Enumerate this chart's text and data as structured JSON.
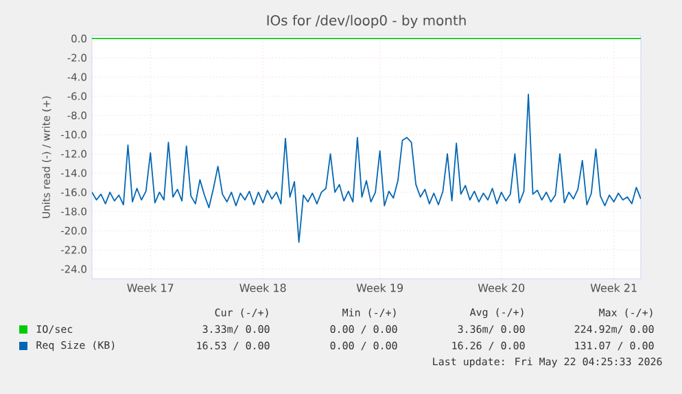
{
  "chart_data": {
    "type": "line",
    "title": "IOs for /dev/loop0 - by month",
    "ylabel": "Units read (-) / write (+)",
    "ylim": [
      -25,
      0.3
    ],
    "categories": [
      null,
      null,
      null,
      null,
      null,
      null,
      null,
      null,
      null,
      null,
      null,
      null,
      null,
      "Week 17",
      null,
      null,
      null,
      null,
      null,
      null,
      null,
      null,
      null,
      null,
      null,
      null,
      null,
      null,
      null,
      null,
      null,
      null,
      null,
      null,
      null,
      null,
      null,
      null,
      "Week 18",
      null,
      null,
      null,
      null,
      null,
      null,
      null,
      null,
      null,
      null,
      null,
      null,
      null,
      null,
      null,
      null,
      null,
      null,
      null,
      null,
      null,
      null,
      null,
      null,
      null,
      "Week 19",
      null,
      null,
      null,
      null,
      null,
      null,
      null,
      null,
      null,
      null,
      null,
      null,
      null,
      null,
      null,
      null,
      null,
      null,
      null,
      null,
      null,
      null,
      null,
      null,
      null,
      null,
      "Week 20",
      null,
      null,
      null,
      null,
      null,
      null,
      null,
      null,
      null,
      null,
      null,
      null,
      null,
      null,
      null,
      null,
      null,
      null,
      null,
      null,
      null,
      null,
      null,
      null,
      "Week 21",
      null,
      null,
      null,
      null,
      null,
      null
    ],
    "yticks": [
      {
        "value": 0,
        "label": "0.0"
      },
      {
        "value": -2,
        "label": "-2.0"
      },
      {
        "value": -4,
        "label": "-4.0"
      },
      {
        "value": -6,
        "label": "-6.0"
      },
      {
        "value": -8,
        "label": "-8.0"
      },
      {
        "value": -10,
        "label": "-10.0"
      },
      {
        "value": -12,
        "label": "-12.0"
      },
      {
        "value": -14,
        "label": "-14.0"
      },
      {
        "value": -16,
        "label": "-16.0"
      },
      {
        "value": -18,
        "label": "-18.0"
      },
      {
        "value": -20,
        "label": "-20.0"
      },
      {
        "value": -22,
        "label": "-22.0"
      },
      {
        "value": -24,
        "label": "-24.0"
      }
    ],
    "grid": true,
    "legend": "bottom",
    "marker": "none",
    "line_style": "solid",
    "series": [
      {
        "name": "IO/sec",
        "color": "#00cc00",
        "values": [
          0,
          0,
          0,
          0,
          0,
          0,
          0,
          0,
          0,
          0,
          0,
          0,
          0,
          0,
          0,
          0,
          0,
          0,
          0,
          0,
          0,
          0,
          0,
          0,
          0,
          0,
          0,
          0,
          0,
          0,
          0,
          0,
          0,
          0,
          0,
          0,
          0,
          0,
          0,
          0,
          0,
          0,
          0,
          0,
          0,
          0,
          0,
          0,
          0,
          0,
          0,
          0,
          0,
          0,
          0,
          0,
          0,
          0,
          0,
          0,
          0,
          0,
          0,
          0,
          0,
          0,
          0,
          0,
          0,
          0,
          0,
          0,
          0,
          0,
          0,
          0,
          0,
          0,
          0,
          0,
          0,
          0,
          0,
          0,
          0,
          0,
          0,
          0,
          0,
          0,
          0,
          0,
          0,
          0,
          0,
          0,
          0,
          0,
          0,
          0,
          0,
          0,
          0,
          0,
          0,
          0,
          0,
          0,
          0,
          0,
          0,
          0,
          0,
          0,
          0,
          0,
          0,
          0,
          0,
          0,
          0,
          0,
          0
        ]
      },
      {
        "name": "Req Size (KB)",
        "color": "#0066b3",
        "values": [
          -16.0,
          -16.8,
          -16.2,
          -17.2,
          -16.0,
          -16.9,
          -16.3,
          -17.3,
          -11.1,
          -17.0,
          -15.6,
          -16.8,
          -15.9,
          -11.9,
          -17.1,
          -16.0,
          -16.8,
          -10.8,
          -16.5,
          -15.7,
          -16.9,
          -11.2,
          -16.4,
          -17.2,
          -14.7,
          -16.3,
          -17.6,
          -15.6,
          -13.3,
          -16.2,
          -17.0,
          -16.0,
          -17.4,
          -16.1,
          -16.8,
          -15.9,
          -17.3,
          -16.0,
          -17.1,
          -15.8,
          -16.7,
          -16.0,
          -17.2,
          -10.4,
          -16.5,
          -14.9,
          -21.2,
          -16.3,
          -17.0,
          -16.1,
          -17.2,
          -16.0,
          -15.6,
          -12.0,
          -16.0,
          -15.2,
          -16.9,
          -15.9,
          -17.0,
          -10.3,
          -16.5,
          -14.8,
          -17.0,
          -16.0,
          -11.7,
          -17.4,
          -15.9,
          -16.6,
          -14.8,
          -10.6,
          -10.3,
          -10.8,
          -15.2,
          -16.5,
          -15.7,
          -17.2,
          -16.1,
          -17.3,
          -15.9,
          -12.0,
          -16.9,
          -10.9,
          -16.2,
          -15.3,
          -16.8,
          -15.9,
          -17.0,
          -16.1,
          -16.8,
          -15.6,
          -17.2,
          -16.0,
          -16.9,
          -16.2,
          -12.0,
          -17.1,
          -15.9,
          -5.8,
          -16.2,
          -15.8,
          -16.8,
          -16.0,
          -17.0,
          -16.3,
          -12.0,
          -17.1,
          -16.0,
          -16.7,
          -15.7,
          -12.7,
          -17.3,
          -16.1,
          -11.5,
          -16.4,
          -17.4,
          -16.3,
          -17.0,
          -16.1,
          -16.8,
          -16.5,
          -17.2,
          -15.5,
          -16.7
        ]
      }
    ],
    "annotations": [
      "Cur (-/+)",
      "Min (-/+)",
      "Avg (-/+)",
      "Max (-/+)",
      "3.33m/ 0.00",
      "0.00 / 0.00",
      "3.36m/ 0.00",
      "224.92m/ 0.00",
      "16.53 / 0.00",
      "0.00 / 0.00",
      "16.26 / 0.00",
      "131.07 / 0.00",
      "Last update: Fri May 22 04:25:33 2026"
    ]
  }
}
